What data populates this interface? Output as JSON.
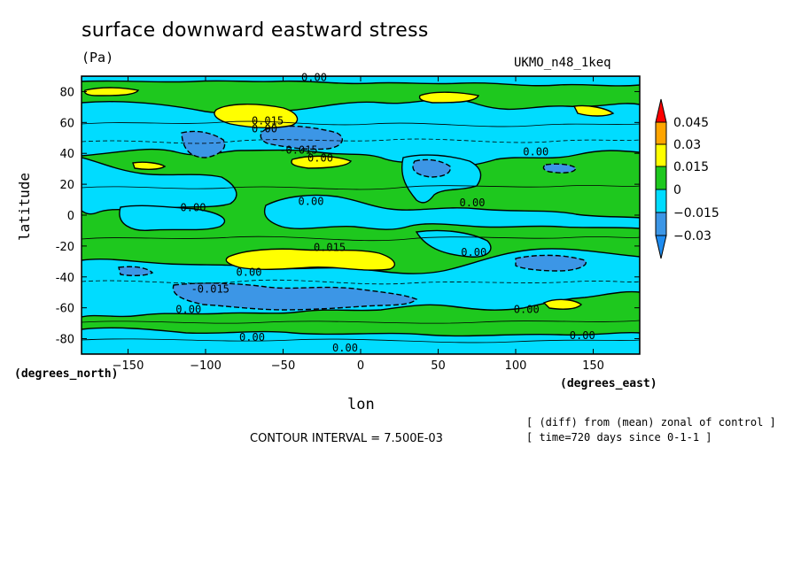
{
  "header": {
    "title": "surface downward eastward stress",
    "units": "(Pa)",
    "dataset": "UKMO_n48_1keq"
  },
  "axes": {
    "ylabel": "latitude",
    "xlabel": "lon",
    "xunit": "(degrees_east)",
    "yunit": "(degrees_north)"
  },
  "footer": {
    "contour_interval": "CONTOUR INTERVAL = 7.500E-03",
    "note1": "[ (diff) from (mean) zonal of control ]",
    "note2": "[ time=720 days since 0-1-1 ]"
  },
  "colors": {
    "level_below_-0.03": "#1e8cf0",
    "level_-0.03": "#3c96e6",
    "level_-0.015": "#00dcff",
    "level_0": "#1ec81e",
    "level_0.015": "#ffff00",
    "level_0.03": "#ffa500",
    "level_0.045": "#ff0000"
  },
  "chart_data": {
    "type": "heatmap",
    "xlim": [
      -180,
      180
    ],
    "ylim": [
      -90,
      90
    ],
    "xticks": [
      "-150",
      "-100",
      "-50",
      "0",
      "50",
      "100",
      "150"
    ],
    "xtick_values": [
      -150,
      -100,
      -50,
      0,
      50,
      100,
      150
    ],
    "yticks": [
      "-80",
      "-60",
      "-40",
      "-20",
      "0",
      "20",
      "40",
      "60",
      "80"
    ],
    "ytick_values": [
      -80,
      -60,
      -40,
      -20,
      0,
      20,
      40,
      60,
      80
    ],
    "colorbar_levels": [
      "0.045",
      "0.03",
      "0.015",
      "0",
      "−0.015",
      "−0.03"
    ],
    "contour_labels": [
      {
        "text": "0.00",
        "lon": -30,
        "lat": 89
      },
      {
        "text": "0.015",
        "lon": -60,
        "lat": 61
      },
      {
        "text": "0.00",
        "lon": -62,
        "lat": 56
      },
      {
        "text": "-0.015",
        "lon": -40,
        "lat": 42
      },
      {
        "text": "0.00",
        "lon": -26,
        "lat": 37
      },
      {
        "text": "0.00",
        "lon": 113,
        "lat": 41
      },
      {
        "text": "0.00",
        "lon": -108,
        "lat": 5
      },
      {
        "text": "0.00",
        "lon": -32,
        "lat": 9
      },
      {
        "text": "0.00",
        "lon": 72,
        "lat": 8
      },
      {
        "text": "0.015",
        "lon": -20,
        "lat": -21
      },
      {
        "text": "0.00",
        "lon": 73,
        "lat": -24
      },
      {
        "text": "0.00",
        "lon": -72,
        "lat": -37
      },
      {
        "text": "-0.015",
        "lon": -97,
        "lat": -48
      },
      {
        "text": "0.00",
        "lon": -111,
        "lat": -61
      },
      {
        "text": "0.00",
        "lon": 107,
        "lat": -61
      },
      {
        "text": "0.00",
        "lon": -70,
        "lat": -79
      },
      {
        "text": "0.00",
        "lon": -10,
        "lat": -86
      },
      {
        "text": "0.00",
        "lon": 143,
        "lat": -78
      }
    ]
  }
}
